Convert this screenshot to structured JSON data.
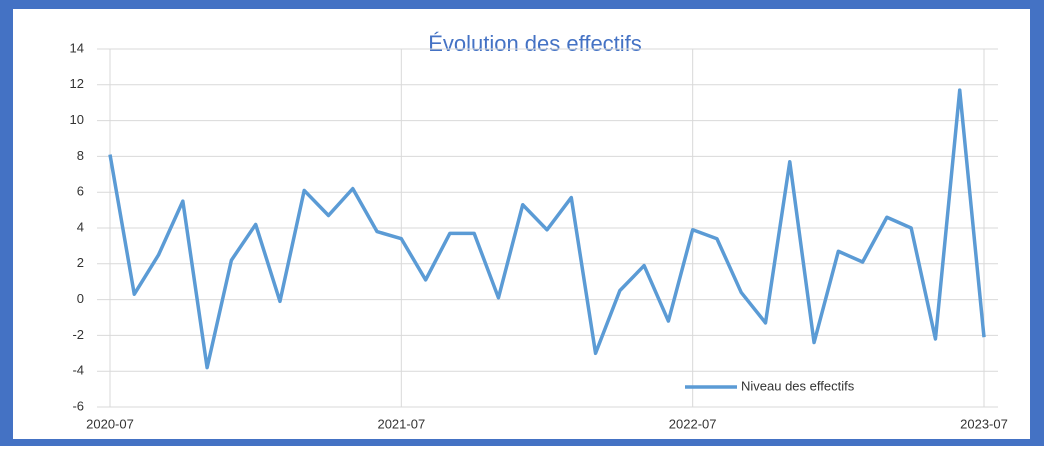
{
  "chart_data": {
    "type": "line",
    "title": "Évolution des effectifs",
    "x": [
      "2020-07",
      "2020-08",
      "2020-09",
      "2020-10",
      "2020-11",
      "2020-12",
      "2021-01",
      "2021-02",
      "2021-03",
      "2021-04",
      "2021-05",
      "2021-06",
      "2021-07",
      "2021-08",
      "2021-09",
      "2021-10",
      "2021-11",
      "2021-12",
      "2022-01",
      "2022-02",
      "2022-03",
      "2022-04",
      "2022-05",
      "2022-06",
      "2022-07",
      "2022-08",
      "2022-09",
      "2022-10",
      "2022-11",
      "2022-12",
      "2023-01",
      "2023-02",
      "2023-03",
      "2023-04",
      "2023-05",
      "2023-06",
      "2023-07"
    ],
    "series": [
      {
        "name": "Niveau des effectifs",
        "color": "#5b9bd5",
        "values": [
          8.1,
          0.3,
          2.5,
          5.5,
          -3.8,
          2.2,
          4.2,
          -0.1,
          6.1,
          4.7,
          6.2,
          3.8,
          3.4,
          1.1,
          3.7,
          3.7,
          0.1,
          5.3,
          3.9,
          5.7,
          -3.0,
          0.5,
          1.9,
          -1.2,
          3.9,
          3.4,
          0.4,
          -1.3,
          7.7,
          -2.4,
          2.7,
          2.1,
          4.6,
          4.0,
          -2.2,
          11.7,
          -2.1
        ]
      }
    ],
    "xticks": [
      "2020-07",
      "2021-07",
      "2022-07",
      "2023-07"
    ],
    "ylim": [
      -6,
      14
    ],
    "yticks": [
      -6,
      -4,
      -2,
      0,
      2,
      4,
      6,
      8,
      10,
      12,
      14
    ],
    "grid": true,
    "legend": "bottom-right"
  }
}
